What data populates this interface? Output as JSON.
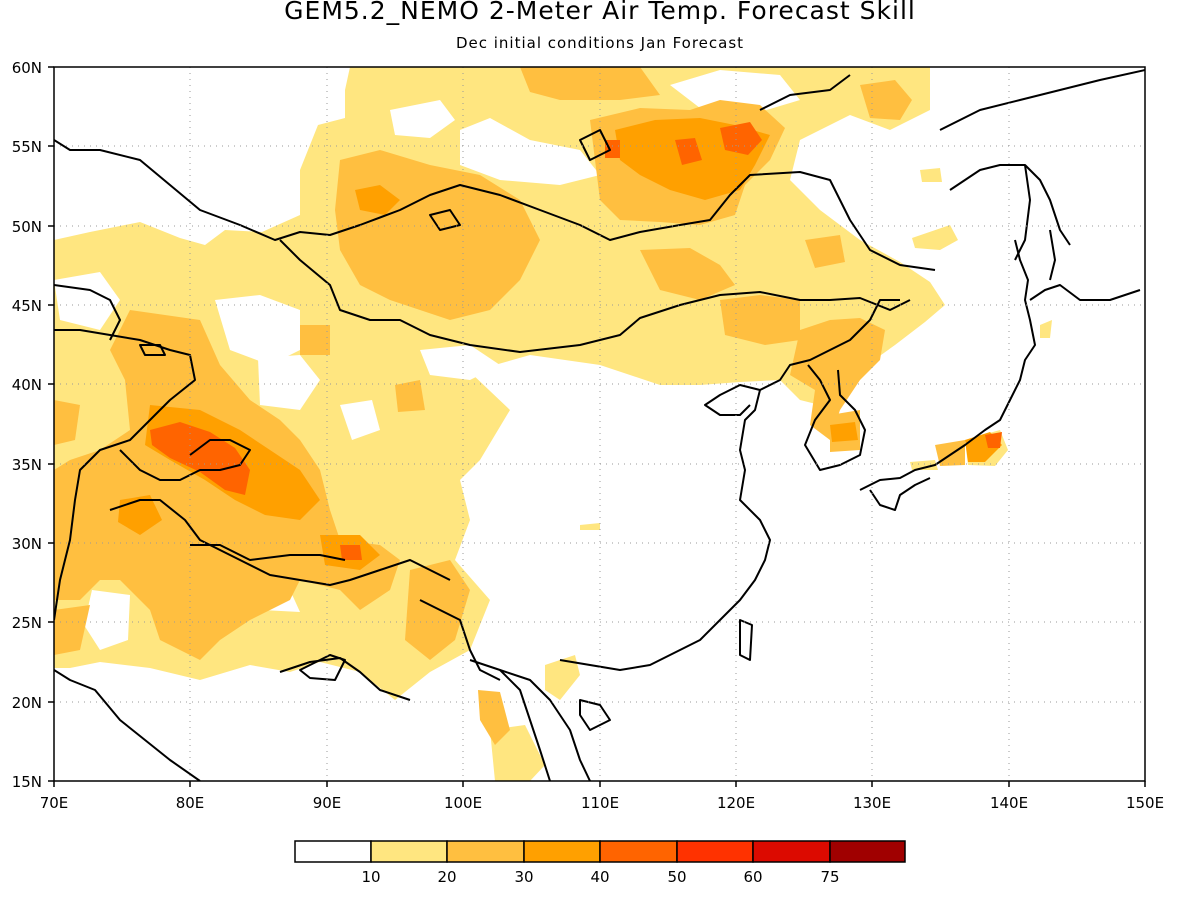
{
  "title": "GEM5.2_NEMO 2-Meter Air Temp. Forecast Skill",
  "subtitle": "Dec initial conditions  Jan Forecast",
  "map": {
    "lon_range": [
      70,
      150
    ],
    "lat_range": [
      15,
      60
    ],
    "lon_ticks": [
      "70E",
      "80E",
      "90E",
      "100E",
      "110E",
      "120E",
      "130E",
      "140E",
      "150E"
    ],
    "lat_ticks": [
      "60N",
      "55N",
      "50N",
      "45N",
      "40N",
      "35N",
      "30N",
      "25N",
      "20N",
      "15N"
    ],
    "grid": true
  },
  "colorbar": {
    "labels": [
      "10",
      "20",
      "30",
      "40",
      "50",
      "60",
      "75"
    ],
    "colors": [
      "#ffffff",
      "#ffe680",
      "#ffbf40",
      "#ffa000",
      "#ff6400",
      "#ff3200",
      "#dc0a00",
      "#a00000"
    ]
  }
}
